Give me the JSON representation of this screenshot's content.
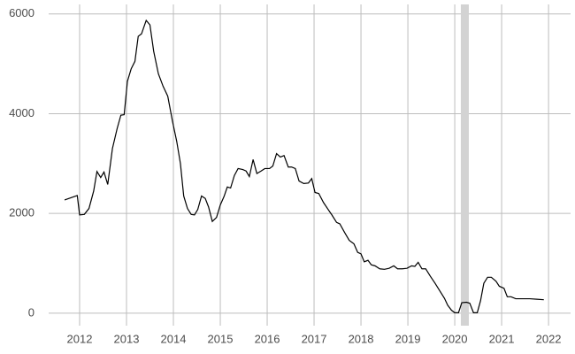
{
  "chart_data": {
    "type": "line",
    "x": [
      2011.68,
      2011.95,
      2012.0,
      2012.1,
      2012.2,
      2012.3,
      2012.37,
      2012.45,
      2012.52,
      2012.6,
      2012.7,
      2012.8,
      2012.88,
      2012.95,
      2013.02,
      2013.1,
      2013.18,
      2013.25,
      2013.32,
      2013.42,
      2013.5,
      2013.58,
      2013.68,
      2013.78,
      2013.88,
      2013.98,
      2014.07,
      2014.15,
      2014.22,
      2014.3,
      2014.38,
      2014.45,
      2014.52,
      2014.6,
      2014.68,
      2014.75,
      2014.83,
      2014.92,
      2015.0,
      2015.08,
      2015.15,
      2015.22,
      2015.3,
      2015.38,
      2015.48,
      2015.55,
      2015.62,
      2015.7,
      2015.78,
      2015.87,
      2015.95,
      2016.05,
      2016.12,
      2016.2,
      2016.28,
      2016.36,
      2016.45,
      2016.52,
      2016.6,
      2016.68,
      2016.78,
      2016.88,
      2016.95,
      2017.02,
      2017.1,
      2017.2,
      2017.3,
      2017.38,
      2017.48,
      2017.55,
      2017.65,
      2017.75,
      2017.85,
      2017.93,
      2018.0,
      2018.07,
      2018.15,
      2018.22,
      2018.3,
      2018.4,
      2018.5,
      2018.6,
      2018.7,
      2018.78,
      2018.88,
      2018.98,
      2019.08,
      2019.15,
      2019.22,
      2019.3,
      2019.38,
      2019.48,
      2019.58,
      2019.68,
      2019.78,
      2019.85,
      2019.93,
      2020.0,
      2020.08,
      2020.15,
      2020.25,
      2020.32,
      2020.4,
      2020.48,
      2020.55,
      2020.62,
      2020.7,
      2020.78,
      2020.88,
      2020.95,
      2021.05,
      2021.12,
      2021.2,
      2021.3,
      2021.45,
      2021.6,
      2021.75,
      2021.9
    ],
    "series": [
      {
        "color": "#000000",
        "values": [
          2270,
          2360,
          1970,
          1980,
          2100,
          2450,
          2840,
          2720,
          2830,
          2580,
          3300,
          3700,
          3970,
          3980,
          4650,
          4900,
          5050,
          5550,
          5600,
          5870,
          5780,
          5250,
          4800,
          4550,
          4350,
          3850,
          3450,
          3000,
          2350,
          2100,
          1980,
          1970,
          2080,
          2350,
          2300,
          2130,
          1840,
          1920,
          2170,
          2340,
          2530,
          2510,
          2760,
          2900,
          2880,
          2850,
          2740,
          3080,
          2800,
          2850,
          2900,
          2900,
          2950,
          3200,
          3130,
          3160,
          2930,
          2930,
          2900,
          2650,
          2600,
          2610,
          2700,
          2420,
          2400,
          2220,
          2080,
          1970,
          1820,
          1790,
          1620,
          1460,
          1390,
          1220,
          1190,
          1030,
          1060,
          970,
          950,
          890,
          880,
          900,
          950,
          890,
          890,
          900,
          950,
          940,
          1020,
          890,
          890,
          740,
          600,
          450,
          300,
          160,
          60,
          10,
          10,
          210,
          220,
          200,
          10,
          10,
          250,
          600,
          720,
          720,
          640,
          540,
          500,
          330,
          330,
          290,
          290,
          290,
          280,
          270
        ]
      }
    ],
    "shaded_x": [
      2020.13,
      2020.3
    ],
    "shaded_color": "#d3d3d3",
    "xlim": [
      2011.34,
      2022.47
    ],
    "xticks": [
      2012,
      2013,
      2014,
      2015,
      2016,
      2017,
      2018,
      2019,
      2020,
      2021,
      2022
    ],
    "ylim": [
      -250,
      6190
    ],
    "yticks": [
      0,
      2000,
      4000,
      6000
    ],
    "grid": true
  }
}
